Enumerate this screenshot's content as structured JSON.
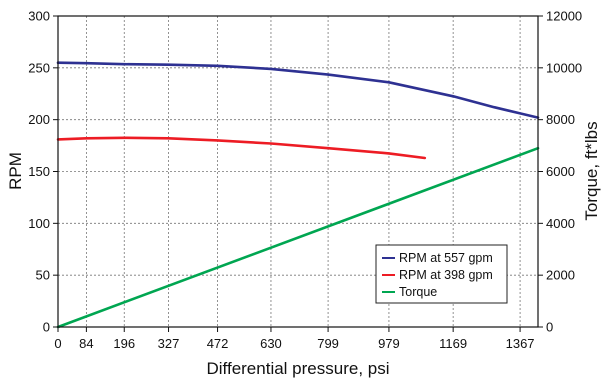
{
  "chart_data": {
    "type": "line",
    "xlabel": "Differential pressure, psi",
    "ylabel": "RPM",
    "y2label": "Torque, ft*lbs",
    "xlim": [
      0,
      1420
    ],
    "ylim": [
      0,
      300
    ],
    "y2lim": [
      0,
      12000
    ],
    "x_ticks": [
      0,
      84,
      196,
      327,
      472,
      630,
      799,
      979,
      1169,
      1367
    ],
    "y_ticks": [
      0,
      50,
      100,
      150,
      200,
      250,
      300
    ],
    "y2_ticks": [
      0,
      2000,
      4000,
      6000,
      8000,
      10000,
      12000
    ],
    "grid": true,
    "legend_position": "bottom-right",
    "series": [
      {
        "name": "RPM at 557 gpm",
        "axis": "left",
        "color": "#2e3192",
        "x": [
          0,
          84,
          196,
          327,
          472,
          630,
          799,
          979,
          1169,
          1290,
          1367,
          1420
        ],
        "y": [
          255,
          254.5,
          253.5,
          253,
          252,
          249,
          243.5,
          236,
          222.5,
          212,
          206,
          202
        ]
      },
      {
        "name": "RPM at 398 gpm",
        "axis": "left",
        "color": "#ed1c24",
        "x": [
          0,
          84,
          196,
          327,
          472,
          630,
          799,
          979,
          1085
        ],
        "y": [
          181,
          182,
          182.5,
          182,
          180,
          177,
          172.5,
          167.5,
          163
        ]
      },
      {
        "name": "Torque",
        "axis": "right",
        "color": "#00a651",
        "x": [
          0,
          1420
        ],
        "y": [
          0,
          6900
        ]
      }
    ]
  }
}
